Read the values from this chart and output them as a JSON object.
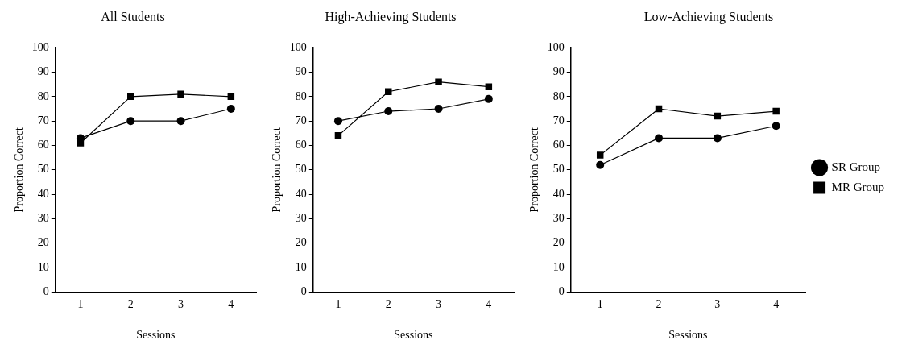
{
  "chart_data": [
    {
      "type": "line",
      "title": "All Students",
      "xlabel": "Sessions",
      "ylabel": "Proportion Correct",
      "categories": [
        "1",
        "2",
        "3",
        "4"
      ],
      "ylim": [
        0,
        100
      ],
      "yticks": [
        0,
        10,
        20,
        30,
        40,
        50,
        60,
        70,
        80,
        90,
        100
      ],
      "grid": false,
      "legend": false,
      "series": [
        {
          "color": "#000000",
          "marker": "circle",
          "values": [
            63,
            70,
            70,
            75
          ]
        },
        {
          "color": "#000000",
          "marker": "square",
          "values": [
            61,
            80,
            81,
            80
          ]
        }
      ]
    },
    {
      "type": "line",
      "title": "High-Achieving Students",
      "xlabel": "Sessions",
      "ylabel": "Proportion Correct",
      "categories": [
        "1",
        "2",
        "3",
        "4"
      ],
      "ylim": [
        0,
        100
      ],
      "yticks": [
        0,
        10,
        20,
        30,
        40,
        50,
        60,
        70,
        80,
        90,
        100
      ],
      "grid": false,
      "legend": false,
      "series": [
        {
          "color": "#000000",
          "marker": "circle",
          "values": [
            70,
            74,
            75,
            79
          ]
        },
        {
          "color": "#000000",
          "marker": "square",
          "values": [
            64,
            82,
            86,
            84
          ]
        }
      ]
    },
    {
      "type": "line",
      "title": "Low-Achieving Students",
      "xlabel": "Sessions",
      "ylabel": "Proportion Correct",
      "categories": [
        "1",
        "2",
        "3",
        "4"
      ],
      "ylim": [
        0,
        100
      ],
      "yticks": [
        0,
        10,
        20,
        30,
        40,
        50,
        60,
        70,
        80,
        90,
        100
      ],
      "grid": false,
      "legend": "right",
      "series": [
        {
          "name": "SR Group",
          "color": "#000000",
          "marker": "circle",
          "values": [
            52,
            63,
            63,
            68
          ]
        },
        {
          "name": "MR Group",
          "color": "#000000",
          "marker": "square",
          "values": [
            56,
            75,
            72,
            74
          ]
        }
      ]
    }
  ]
}
